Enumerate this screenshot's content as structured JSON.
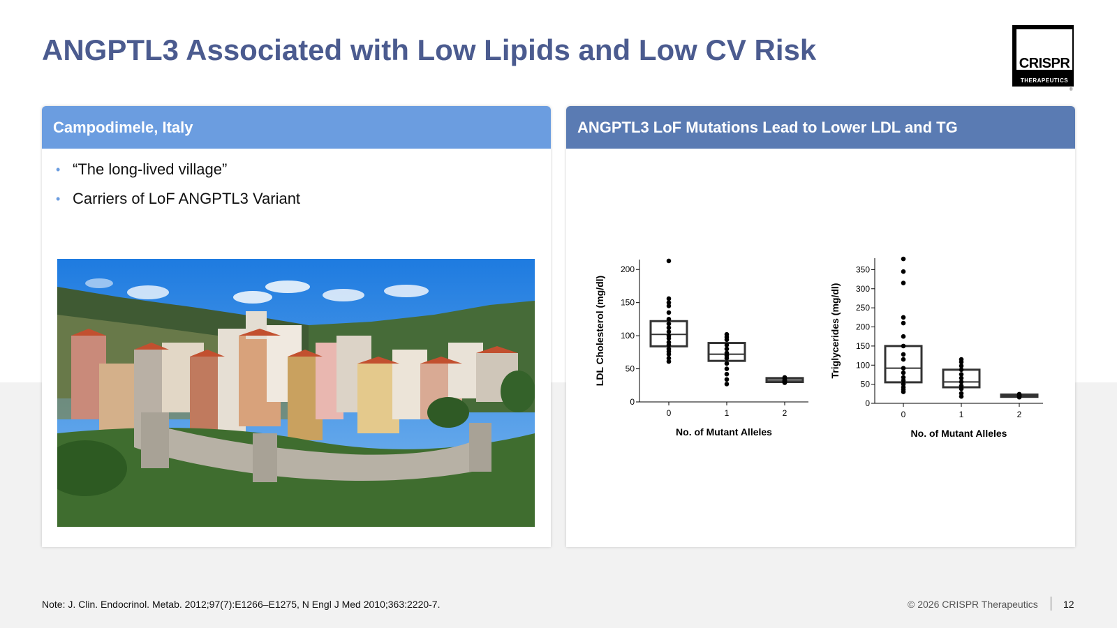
{
  "slide": {
    "title": "ANGPTL3 Associated with Low Lipids and Low CV Risk",
    "logo_word": "CRISPR",
    "logo_sub": "THERAPEUTICS",
    "logo_reg": "®"
  },
  "left_panel": {
    "header": "Campodimele, Italy",
    "bullets": [
      "“The long-lived village”",
      "Carriers of LoF ANGPTL3 Variant"
    ],
    "bullet_color": "#6b9de0",
    "header_color": "#6b9de0"
  },
  "right_panel": {
    "header": "ANGPTL3 LoF Mutations Lead to Lower LDL and TG",
    "header_color": "#5a7bb3"
  },
  "chart_data": [
    {
      "type": "box",
      "ylabel": "LDL Cholesterol (mg/dl)",
      "xlabel": "No. of Mutant Alleles",
      "categories": [
        "0",
        "1",
        "2"
      ],
      "yticks": [
        0,
        50,
        100,
        150,
        200
      ],
      "ylim": [
        0,
        215
      ],
      "boxes": [
        {
          "q1": 84,
          "median": 102,
          "q3": 122
        },
        {
          "q1": 62,
          "median": 72,
          "q3": 89
        },
        {
          "q1": 30,
          "median": 33,
          "q3": 36
        }
      ],
      "points": [
        [
          213,
          156,
          150,
          145,
          135,
          125,
          118,
          112,
          106,
          100,
          96,
          90,
          86,
          80,
          76,
          72,
          66,
          61
        ],
        [
          102,
          98,
          94,
          86,
          80,
          74,
          70,
          66,
          58,
          50,
          42,
          34,
          27
        ],
        [
          37,
          35,
          33,
          32,
          31,
          30,
          29
        ]
      ]
    },
    {
      "type": "box",
      "ylabel": "Triglycerides (mg/dl)",
      "xlabel": "No. of Mutant Alleles",
      "categories": [
        "0",
        "1",
        "2"
      ],
      "yticks": [
        0,
        50,
        100,
        150,
        200,
        250,
        300,
        350
      ],
      "ylim": [
        0,
        380
      ],
      "boxes": [
        {
          "q1": 55,
          "median": 92,
          "q3": 150
        },
        {
          "q1": 42,
          "median": 56,
          "q3": 88
        },
        {
          "q1": 17,
          "median": 20,
          "q3": 23
        }
      ],
      "points": [
        [
          378,
          345,
          315,
          225,
          210,
          175,
          150,
          128,
          115,
          92,
          80,
          68,
          60,
          50,
          42,
          36,
          30
        ],
        [
          115,
          108,
          98,
          88,
          76,
          66,
          56,
          46,
          38,
          26,
          18
        ],
        [
          24,
          22,
          20,
          18,
          16
        ]
      ]
    }
  ],
  "footer": {
    "note": "Note: J. Clin. Endocrinol. Metab. 2012;97(7):E1266–E1275, N Engl J Med 2010;363:2220-7.",
    "copyright": "© 2026 CRISPR Therapeutics",
    "page": "12"
  }
}
